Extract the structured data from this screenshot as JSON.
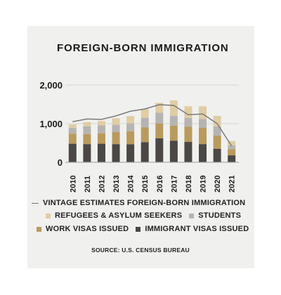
{
  "chart_data": {
    "type": "bar",
    "title": "FOREIGN-BORN IMMIGRATION",
    "categories": [
      "2010",
      "2011",
      "2012",
      "2013",
      "2014",
      "2015",
      "2016",
      "2017",
      "2018",
      "2019",
      "2020",
      "2021"
    ],
    "stacked": true,
    "series": [
      {
        "name": "IMMIGRANT VISAS ISSUED",
        "color": "#4a4745",
        "values": [
          480,
          470,
          480,
          470,
          465,
          520,
          620,
          560,
          530,
          470,
          350,
          180
        ]
      },
      {
        "name": "WORK VISAS ISSUED",
        "color": "#b99a5d",
        "values": [
          260,
          260,
          270,
          310,
          340,
          380,
          380,
          390,
          390,
          420,
          340,
          160
        ]
      },
      {
        "name": "STUDENTS",
        "color": "#b6b4b1",
        "values": [
          150,
          200,
          210,
          190,
          200,
          250,
          280,
          250,
          230,
          230,
          240,
          100
        ]
      },
      {
        "name": "REFUGEES & ASYLUM SEEKERS",
        "color": "#e0cda4",
        "values": [
          90,
          110,
          110,
          170,
          190,
          230,
          260,
          400,
          300,
          330,
          270,
          110
        ]
      }
    ],
    "line_series": {
      "name": "VINTAGE ESTIMATES FOREIGN-BORN IMMIGRATION",
      "color": "#7a7a7a",
      "values": [
        1050,
        1120,
        1110,
        1200,
        1320,
        1380,
        1490,
        1470,
        1230,
        1250,
        1000,
        420
      ]
    },
    "yticks": [
      "0",
      "1,000",
      "2,000"
    ],
    "ylim": [
      0,
      2000
    ],
    "grid": true,
    "legend_position": "bottom"
  },
  "legend": {
    "line_label": "VINTAGE ESTIMATES FOREIGN-BORN IMMIGRATION",
    "refugees_label": "REFUGEES & ASYLUM SEEKERS",
    "students_label": "STUDENTS",
    "work_label": "WORK VISAS ISSUED",
    "immigrant_label": "IMMIGRANT VISAS ISSUED"
  },
  "source": "SOURCE: U.S. CENSUS BUREAU"
}
